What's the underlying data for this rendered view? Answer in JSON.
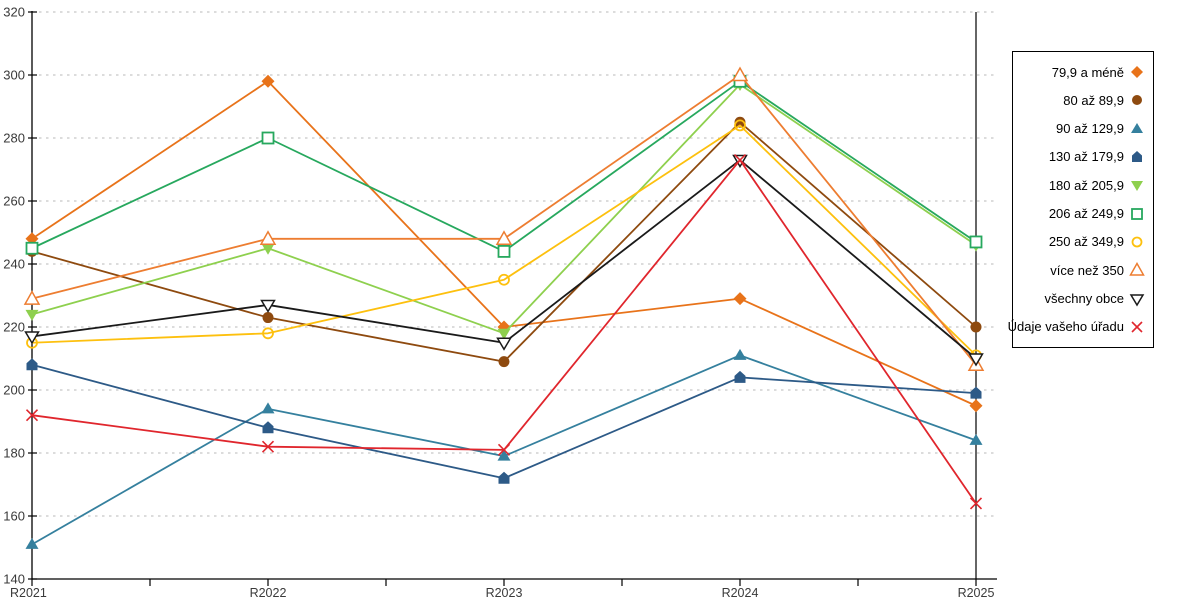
{
  "chart_data": {
    "type": "line",
    "title": "",
    "xlabel": "",
    "ylabel": "",
    "categories": [
      "R2021",
      "R2022",
      "R2023",
      "R2024",
      "R2025"
    ],
    "ylim": [
      140,
      320
    ],
    "ytick_step": 20,
    "grid": "horizontal-dashed",
    "legend_position": "right-outside",
    "axis_color": "#000000",
    "gridline_color": "#b8b8b8",
    "tick_label_color": "#3a3a3a",
    "series": [
      {
        "name": "79,9 a méně",
        "marker": "diamond",
        "color": "#e8731a",
        "values": [
          248,
          298,
          220,
          229,
          195
        ]
      },
      {
        "name": "80 až 89,9",
        "marker": "circle",
        "color": "#8e4a0f",
        "values": [
          244,
          223,
          209,
          285,
          220
        ]
      },
      {
        "name": "90 až 129,9",
        "marker": "triangle-up",
        "color": "#35809e",
        "values": [
          151,
          194,
          179,
          211,
          184
        ]
      },
      {
        "name": "130 až 179,9",
        "marker": "pentagon",
        "color": "#2d5a87",
        "values": [
          208,
          188,
          172,
          204,
          199
        ]
      },
      {
        "name": "180 až 205,9",
        "marker": "triangle-down",
        "color": "#8ed04e",
        "values": [
          224,
          245,
          218,
          297,
          246
        ]
      },
      {
        "name": "206 až 249,9",
        "marker": "square-open",
        "color": "#27a85e",
        "values": [
          245,
          280,
          244,
          298,
          247
        ]
      },
      {
        "name": "250 až 349,9",
        "marker": "circle-open",
        "color": "#fdc00e",
        "values": [
          215,
          218,
          235,
          284,
          211
        ]
      },
      {
        "name": "více než 350",
        "marker": "triangle-up-open",
        "color": "#ed7d31",
        "values": [
          229,
          248,
          248,
          300,
          208
        ]
      },
      {
        "name": "všechny obce",
        "marker": "triangle-down-open",
        "color": "#1a1a1a",
        "values": [
          217,
          227,
          215,
          273,
          210
        ]
      },
      {
        "name": "Údaje vašeho úřadu",
        "marker": "x",
        "color": "#e0262d",
        "values": [
          192,
          182,
          181,
          273,
          164
        ]
      }
    ]
  }
}
